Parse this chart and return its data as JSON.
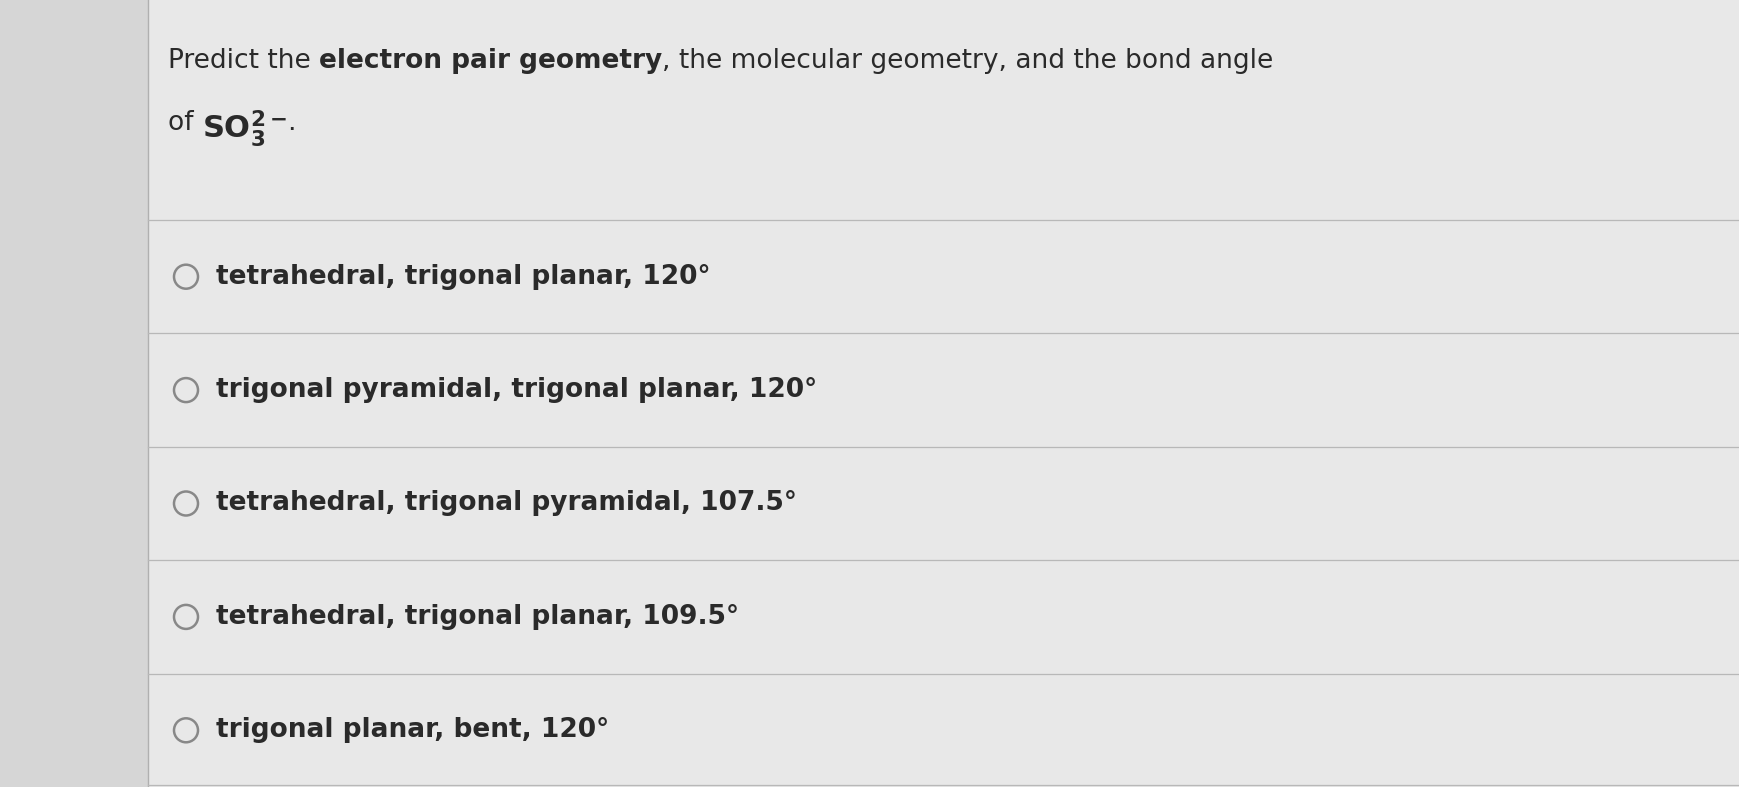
{
  "options": [
    "tetrahedral, trigonal planar, 120°",
    "trigonal pyramidal, trigonal planar, 120°",
    "tetrahedral, trigonal pyramidal, 107.5°",
    "tetrahedral, trigonal planar, 109.5°",
    "trigonal planar, bent, 120°"
  ],
  "bg_color": "#d6d6d6",
  "panel_color": "#e8e8e8",
  "text_color": "#2a2a2a",
  "circle_edge_color": "#888888",
  "divider_color": "#b8b8b8",
  "title_seg1": "Predict the ",
  "title_seg2": "electron pair geometry",
  "title_seg3": ", the molecular geometry, and the bond angle",
  "title_line2_pre": "of ",
  "title_line2_end": ".",
  "title_fontsize": 19,
  "option_fontsize": 19,
  "fig_width": 17.4,
  "fig_height": 7.87,
  "dpi": 100
}
